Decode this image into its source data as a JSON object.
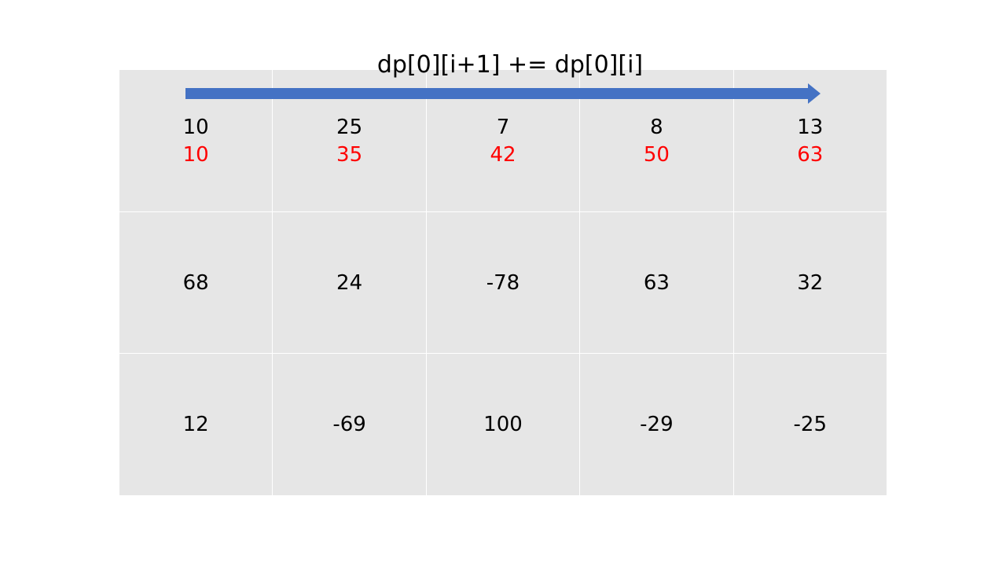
{
  "formula": "dp[0][i+1]  +=  dp[0][i]",
  "colors": {
    "cell_bg": "#e6e6e6",
    "arrow": "#4472c4",
    "accumulated_text": "#ff0000"
  },
  "grid": {
    "row0": {
      "original": [
        "10",
        "25",
        "7",
        "8",
        "13"
      ],
      "accumulated": [
        "10",
        "35",
        "42",
        "50",
        "63"
      ]
    },
    "row1": [
      "68",
      "24",
      "-78",
      "63",
      "32"
    ],
    "row2": [
      "12",
      "-69",
      "100",
      "-29",
      "-25"
    ]
  }
}
